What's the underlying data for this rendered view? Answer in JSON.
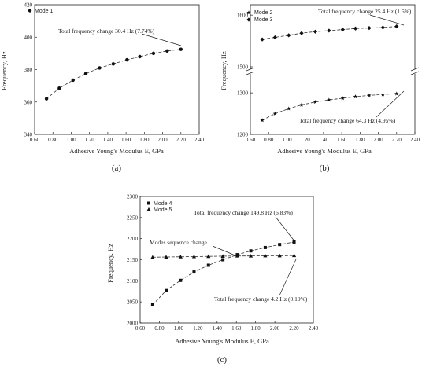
{
  "chart_data": [
    {
      "panel_label": "(a)",
      "type": "line",
      "xlabel": "Adhesive Young's Modulus E, GPa",
      "ylabel": "Frequency, Hz",
      "xlim": [
        0.6,
        2.4
      ],
      "ylim": [
        340,
        420
      ],
      "xticks": [
        "0.60",
        "0.80",
        "1.00",
        "1.20",
        "1.40",
        "1.60",
        "1.80",
        "2.00",
        "2.20",
        "2.40"
      ],
      "yticks": [
        "340",
        "360",
        "380",
        "400",
        "420"
      ],
      "legend_position": "top-left",
      "marker_colors": {
        "line": "#333333",
        "marker": "#111111"
      },
      "series": [
        {
          "name": "Mode 1",
          "marker": "circle",
          "x": [
            0.73,
            0.87,
            1.02,
            1.16,
            1.31,
            1.46,
            1.61,
            1.75,
            1.9,
            2.05,
            2.2
          ],
          "y": [
            362.0,
            368.5,
            373.5,
            377.5,
            381.0,
            383.5,
            386.0,
            388.0,
            390.0,
            391.5,
            392.5
          ]
        }
      ],
      "annotations": [
        {
          "text": "Total frequency change 30.4 Hz (7.74%)",
          "x": 1.15,
          "y": 400
        }
      ]
    },
    {
      "panel_label": "(b)",
      "type": "line",
      "xlabel": "Adhesive Young's Modulus E, GPa",
      "ylabel": "Frequency, Hz",
      "xlim": [
        0.6,
        2.4
      ],
      "broken_axis": true,
      "ylim_upper": [
        1500,
        1620
      ],
      "ylim_lower": [
        1200,
        1340
      ],
      "xticks": [
        "0.60",
        "0.80",
        "1.00",
        "1.20",
        "1.40",
        "1.60",
        "1.80",
        "2.00",
        "2.20",
        "2.40"
      ],
      "yticks_upper": [
        "1500",
        "1600"
      ],
      "yticks_lower": [
        "1200",
        "1300"
      ],
      "legend_position": "top-left",
      "series": [
        {
          "name": "Mode 2",
          "marker": "star",
          "panel": "lower",
          "x": [
            0.73,
            0.87,
            1.02,
            1.16,
            1.31,
            1.46,
            1.61,
            1.75,
            1.9,
            2.05,
            2.2
          ],
          "y": [
            1234,
            1250,
            1262,
            1271,
            1278,
            1283,
            1287,
            1291,
            1294,
            1296,
            1298
          ]
        },
        {
          "name": "Mode 3",
          "marker": "diamond",
          "panel": "upper",
          "x": [
            0.73,
            0.87,
            1.02,
            1.16,
            1.31,
            1.46,
            1.61,
            1.75,
            1.9,
            2.05,
            2.2
          ],
          "y": [
            1553,
            1557,
            1561,
            1565,
            1568,
            1570,
            1572,
            1574,
            1575,
            1576,
            1578
          ]
        }
      ],
      "annotations": [
        {
          "text": "Total frequency change 25.4 Hz (1.6%)",
          "x": 1.5,
          "y": 1600
        },
        {
          "text": "Total frequency change 64.3 Hz (4.95%)",
          "x": 1.55,
          "y": 1218
        }
      ]
    },
    {
      "panel_label": "(c)",
      "type": "line",
      "xlabel": "Adhesive Young's Modulus E, GPa",
      "ylabel": "Frequency, Hz",
      "xlim": [
        0.6,
        2.4
      ],
      "ylim": [
        2000,
        2300
      ],
      "xticks": [
        "0.60",
        "0.80",
        "1.00",
        "1.20",
        "1.40",
        "1.60",
        "1.80",
        "2.00",
        "2.20",
        "2.40"
      ],
      "yticks": [
        "2000",
        "2050",
        "2100",
        "2150",
        "2200",
        "2250",
        "2300"
      ],
      "legend_position": "top-left",
      "series": [
        {
          "name": "Mode 4",
          "marker": "square",
          "x": [
            0.73,
            0.87,
            1.02,
            1.16,
            1.31,
            1.46,
            1.61,
            1.75,
            1.9,
            2.05,
            2.2
          ],
          "y": [
            2043,
            2077,
            2101,
            2121,
            2137,
            2150,
            2162,
            2171,
            2179,
            2186,
            2192
          ]
        },
        {
          "name": "Mode 5",
          "marker": "triangle",
          "x": [
            0.73,
            0.87,
            1.02,
            1.16,
            1.31,
            1.46,
            1.61,
            1.75,
            1.9,
            2.05,
            2.2
          ],
          "y": [
            2156,
            2156.5,
            2157,
            2157.5,
            2158,
            2158.5,
            2159,
            2159,
            2159.5,
            2159.5,
            2160
          ]
        }
      ],
      "annotations": [
        {
          "text": "Total frequency change 149.8 Hz (6.83%)",
          "x": 1.55,
          "y": 2250
        },
        {
          "text": "Modes sequence change",
          "x": 0.85,
          "y": 2185
        },
        {
          "text": "Total frequency change 4.2 Hz (0.19%)",
          "x": 1.3,
          "y": 2070
        }
      ]
    }
  ]
}
